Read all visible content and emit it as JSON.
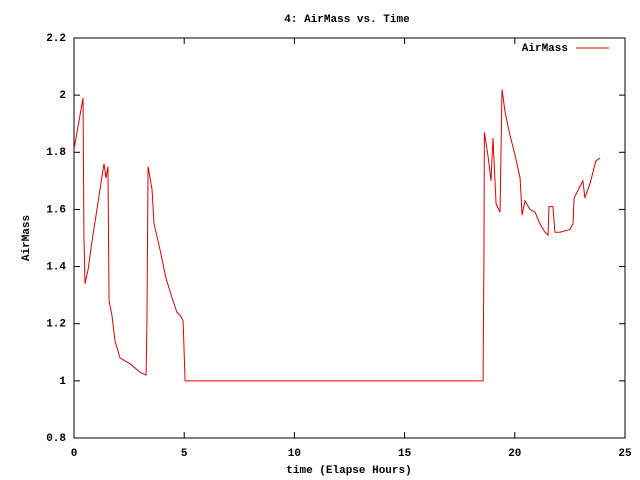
{
  "chart_data": {
    "type": "line",
    "title": "4: AirMass vs. Time",
    "x_label": "time (Elapse Hours)",
    "y_label": "AirMass",
    "xlim": [
      0,
      25
    ],
    "xticks": [
      0,
      5,
      10,
      15,
      20,
      25
    ],
    "ylim": [
      0.8,
      2.2
    ],
    "yticks": [
      0.8,
      1,
      1.2,
      1.4,
      1.6,
      1.8,
      2,
      2.2
    ],
    "legend": "top-right",
    "grid": false,
    "x": [
      0,
      0.41,
      0.45,
      0.5,
      0.64,
      0.82,
      1.04,
      1.36,
      1.45,
      1.54,
      1.59,
      1.72,
      1.86,
      2.09,
      2.54,
      3.0,
      3.27,
      3.31,
      3.36,
      3.54,
      3.63,
      3.9,
      4.17,
      4.45,
      4.67,
      4.81,
      4.95,
      5.04,
      18.56,
      18.6,
      18.62,
      18.78,
      18.92,
      19.01,
      19.15,
      19.33,
      19.42,
      19.56,
      19.78,
      20.01,
      20.24,
      20.33,
      20.46,
      20.69,
      20.92,
      21.14,
      21.37,
      21.51,
      21.55,
      21.73,
      21.82,
      22.05,
      22.5,
      22.64,
      22.69,
      23.09,
      23.18,
      23.41,
      23.68,
      23.87
    ],
    "series": [
      {
        "name": "AirMass",
        "color": "#e00000",
        "values": [
          1.81,
          1.99,
          1.51,
          1.34,
          1.39,
          1.49,
          1.6,
          1.76,
          1.71,
          1.75,
          1.28,
          1.23,
          1.14,
          1.08,
          1.06,
          1.03,
          1.02,
          1.21,
          1.75,
          1.67,
          1.55,
          1.46,
          1.36,
          1.29,
          1.24,
          1.23,
          1.21,
          1.0,
          1.0,
          1.44,
          1.87,
          1.79,
          1.7,
          1.85,
          1.62,
          1.59,
          2.02,
          1.94,
          1.86,
          1.79,
          1.71,
          1.58,
          1.63,
          1.6,
          1.59,
          1.55,
          1.52,
          1.51,
          1.61,
          1.61,
          1.52,
          1.52,
          1.53,
          1.55,
          1.64,
          1.7,
          1.64,
          1.69,
          1.77,
          1.78
        ]
      }
    ]
  }
}
